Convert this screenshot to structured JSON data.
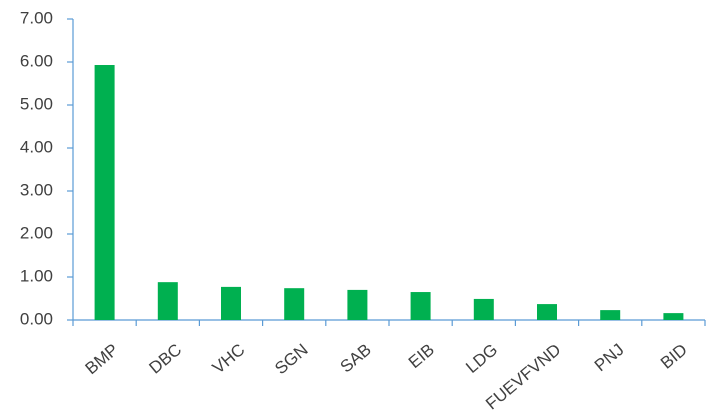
{
  "chart_data": {
    "type": "bar",
    "categories": [
      "BMP",
      "DBC",
      "VHC",
      "SGN",
      "SAB",
      "EIB",
      "LDG",
      "FUEVFVND",
      "PNJ",
      "BID"
    ],
    "values": [
      5.93,
      0.88,
      0.77,
      0.74,
      0.7,
      0.65,
      0.49,
      0.37,
      0.23,
      0.16
    ],
    "color": "#00b050",
    "ylim": [
      0,
      7
    ],
    "yticks": [
      {
        "value": 0,
        "label": "0.00"
      },
      {
        "value": 1,
        "label": "1.00"
      },
      {
        "value": 2,
        "label": "2.00"
      },
      {
        "value": 3,
        "label": "3.00"
      },
      {
        "value": 4,
        "label": "4.00"
      },
      {
        "value": 5,
        "label": "5.00"
      },
      {
        "value": 6,
        "label": "6.00"
      },
      {
        "value": 7,
        "label": "7.00"
      }
    ],
    "grid": false
  }
}
